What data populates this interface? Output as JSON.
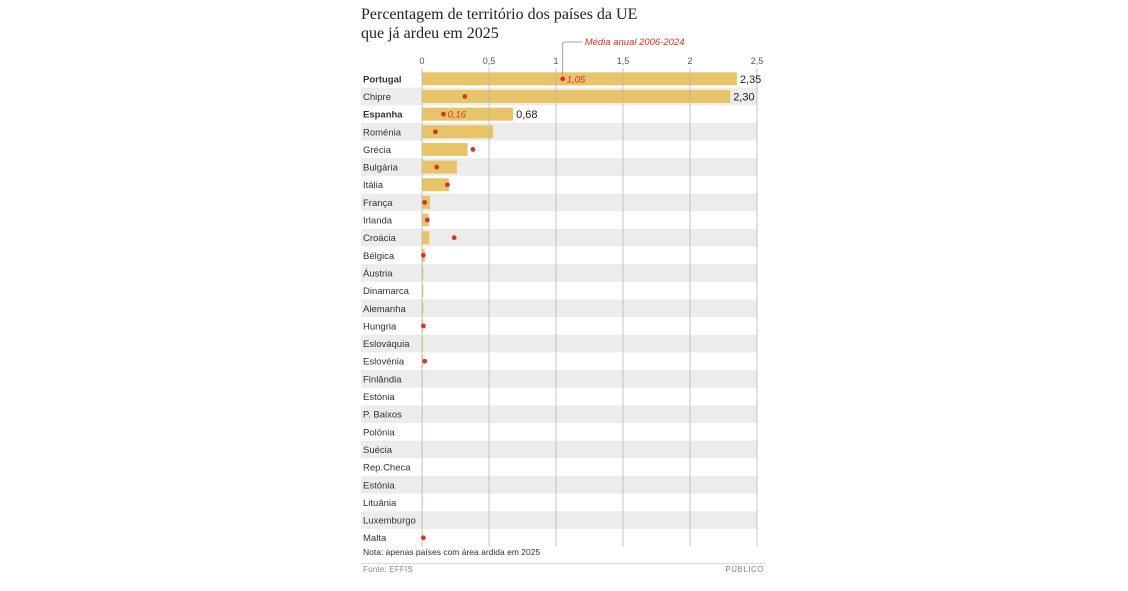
{
  "chart_data": {
    "type": "bar",
    "orientation": "horizontal",
    "title_lines": [
      "Percentagem de território dos países da UE",
      "que já ardeu em 2025"
    ],
    "xlim": [
      0,
      2.5
    ],
    "ticks": [
      0,
      0.5,
      1,
      1.5,
      2,
      2.5
    ],
    "tick_labels": [
      "0",
      "0,5",
      "1",
      "1,5",
      "2",
      "2,5"
    ],
    "categories": [
      "Portugal",
      "Chipre",
      "Espanha",
      "Roménia",
      "Grécia",
      "Bulgária",
      "Itália",
      "França",
      "Irlanda",
      "Croácia",
      "Bélgica",
      "Áustria",
      "Dinamarca",
      "Alemanha",
      "Hungria",
      "Eslováquia",
      "Eslovénia",
      "Finlândia",
      "Estónia",
      "P. Baixos",
      "Polónia",
      "Suécia",
      "Rep.Checa",
      "Estónia",
      "Lituânia",
      "Luxemburgo",
      "Malta"
    ],
    "bold_categories": [
      "Portugal",
      "Espanha"
    ],
    "series": [
      {
        "name": "2025",
        "color": "#e8c468",
        "values": [
          2.35,
          2.3,
          0.68,
          0.53,
          0.34,
          0.26,
          0.2,
          0.06,
          0.05,
          0.055,
          0.02,
          0.01,
          0.01,
          0.01,
          0.008,
          0.008,
          0.008,
          0.004,
          0.003,
          0.003,
          0.002,
          0.002,
          0.002,
          0.002,
          0.001,
          0.001,
          0.0005
        ]
      },
      {
        "name": "Média anual 2006-2024",
        "color": "#d9332b",
        "values": [
          1.05,
          0.32,
          0.16,
          0.1,
          0.38,
          0.11,
          0.19,
          0.02,
          0.04,
          0.24,
          0.01,
          null,
          null,
          null,
          0.01,
          null,
          0.02,
          null,
          null,
          null,
          null,
          null,
          null,
          null,
          null,
          null,
          0.01
        ]
      }
    ],
    "value_labels": [
      {
        "category": "Portugal",
        "text": "2,35"
      },
      {
        "category": "Chipre",
        "text": "2,30"
      },
      {
        "category": "Espanha",
        "text": "0,68"
      }
    ],
    "average_labels": [
      {
        "category": "Portugal",
        "text": "1,05"
      },
      {
        "category": "Espanha",
        "text": "0,16"
      }
    ],
    "annotation": "Média anual 2006-2024"
  },
  "note": "Nota: apenas países com área ardida em 2025",
  "source": "Fonte: EFFIS",
  "brand": "PÚBLICO",
  "colors": {
    "bar": "#e8c468",
    "dot": "#d9332b",
    "stripe": "#ececec",
    "grid": "#b8b8b8",
    "annotation": "#d9332b"
  }
}
